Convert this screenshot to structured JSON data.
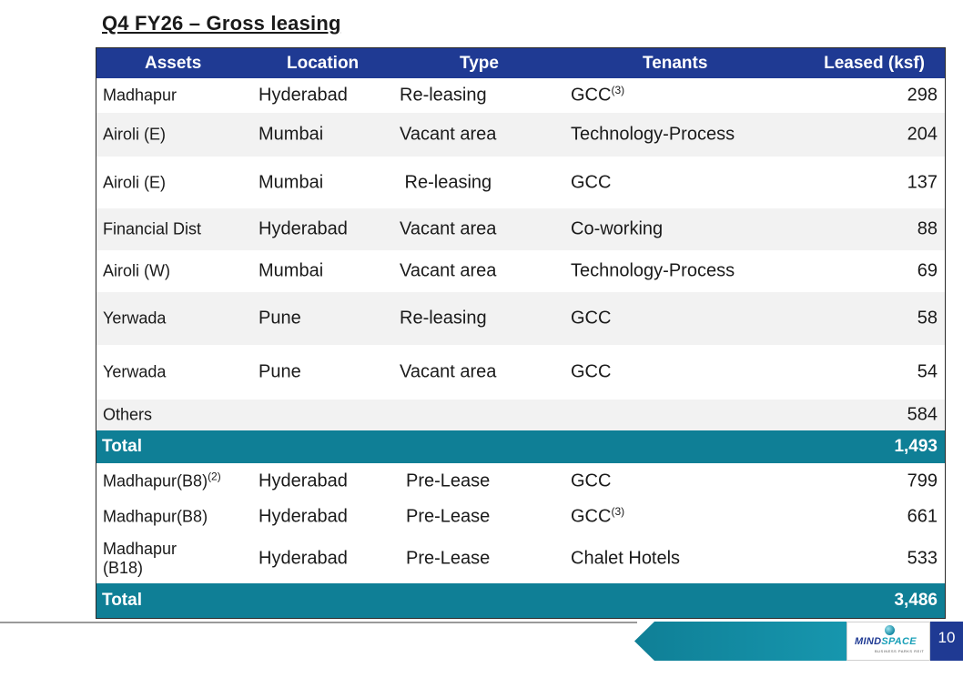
{
  "title": "Q4 FY26 – Gross leasing",
  "table": {
    "headers": {
      "assets": "Assets",
      "location": "Location",
      "type": "Type",
      "tenants": "Tenants",
      "leased": "Leased (ksf)"
    },
    "rows": [
      {
        "asset": "Madhapur",
        "asset_sup": "",
        "location": "Hyderabad",
        "type": "Re-leasing",
        "tenant": "GCC",
        "tenant_sup": "(3)",
        "leased": "298"
      },
      {
        "asset": "Airoli (E)",
        "asset_sup": "",
        "location": "Mumbai",
        "type": "Vacant area",
        "tenant": "Technology-Process",
        "tenant_sup": "",
        "leased": "204"
      },
      {
        "asset": "Airoli (E)",
        "asset_sup": "",
        "location": "Mumbai",
        "type": " Re-leasing",
        "tenant": "GCC",
        "tenant_sup": "",
        "leased": "137"
      },
      {
        "asset": "Financial Dist",
        "asset_sup": "",
        "location": "Hyderabad",
        "type": "Vacant area",
        "tenant": "Co-working",
        "tenant_sup": "",
        "leased": "88"
      },
      {
        "asset": "Airoli (W)",
        "asset_sup": "",
        "location": "Mumbai",
        "type": "Vacant area",
        "tenant": "Technology-Process",
        "tenant_sup": "",
        "leased": "69"
      },
      {
        "asset": "Yerwada",
        "asset_sup": "",
        "location": "Pune",
        "type": "Re-leasing",
        "tenant": "GCC",
        "tenant_sup": "",
        "leased": "58"
      },
      {
        "asset": "Yerwada",
        "asset_sup": "",
        "location": "Pune",
        "type": "Vacant area",
        "tenant": "GCC",
        "tenant_sup": "",
        "leased": "54"
      },
      {
        "asset": "Others",
        "asset_sup": "",
        "location": "",
        "type": "",
        "tenant": "",
        "tenant_sup": "",
        "leased": "584"
      }
    ],
    "total1": {
      "label": "Total",
      "value": "1,493"
    },
    "rows2": [
      {
        "asset": "Madhapur(B8)",
        "asset_sup": "(2)",
        "location": "Hyderabad",
        "type": "Pre-Lease",
        "tenant": "GCC",
        "tenant_sup": "",
        "leased": "799"
      },
      {
        "asset": "Madhapur(B8)",
        "asset_sup": "",
        "location": "Hyderabad",
        "type": "Pre-Lease",
        "tenant": "GCC",
        "tenant_sup": "(3)",
        "leased": "661"
      },
      {
        "asset": "Madhapur (B18)",
        "asset_sup": "",
        "location": "Hyderabad",
        "type": "Pre-Lease",
        "tenant": "Chalet Hotels",
        "tenant_sup": "",
        "leased": "533"
      }
    ],
    "total2": {
      "label": "Total",
      "value": "3,486"
    }
  },
  "footer": {
    "logo_main": "MIND",
    "logo_accent": "SPACE",
    "logo_sub": "BUSINESS PARKS REIT",
    "page_number": "10",
    "colors": {
      "header": "#1f3a93",
      "total": "#0f7f96",
      "band": "#138aa3"
    }
  }
}
